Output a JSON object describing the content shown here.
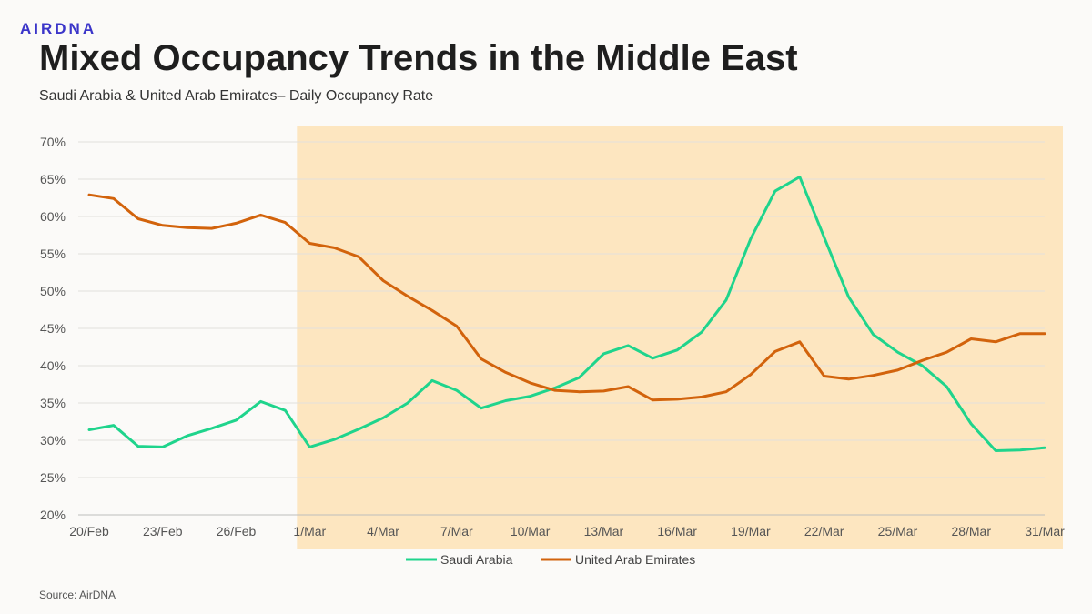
{
  "brand": {
    "logo_text": "AIRDNA",
    "accent": "#3b35c9"
  },
  "header": {
    "title": "Mixed Occupancy Trends in the Middle East",
    "subtitle": "Saudi Arabia & United Arab Emirates– Daily Occupancy Rate"
  },
  "footer": {
    "source": "Source: AirDNA"
  },
  "chart_data": {
    "type": "line",
    "x": [
      "20/Feb",
      "21/Feb",
      "22/Feb",
      "23/Feb",
      "24/Feb",
      "25/Feb",
      "26/Feb",
      "27/Feb",
      "28/Feb",
      "1/Mar",
      "2/Mar",
      "3/Mar",
      "4/Mar",
      "5/Mar",
      "6/Mar",
      "7/Mar",
      "8/Mar",
      "9/Mar",
      "10/Mar",
      "11/Mar",
      "12/Mar",
      "13/Mar",
      "14/Mar",
      "15/Mar",
      "16/Mar",
      "17/Mar",
      "18/Mar",
      "19/Mar",
      "20/Mar",
      "21/Mar",
      "22/Mar",
      "23/Mar",
      "24/Mar",
      "25/Mar",
      "26/Mar",
      "27/Mar",
      "28/Mar",
      "29/Mar",
      "30/Mar",
      "31/Mar"
    ],
    "x_tick_labels": [
      "20/Feb",
      "23/Feb",
      "26/Feb",
      "1/Mar",
      "4/Mar",
      "7/Mar",
      "10/Mar",
      "13/Mar",
      "16/Mar",
      "19/Mar",
      "22/Mar",
      "25/Mar",
      "28/Mar",
      "31/Mar"
    ],
    "series": [
      {
        "name": "Saudi Arabia",
        "color": "#1fd48c",
        "values": [
          31.4,
          32.0,
          29.2,
          29.1,
          30.6,
          31.6,
          32.7,
          35.2,
          34.0,
          29.1,
          30.1,
          31.5,
          33.0,
          35.0,
          38.0,
          36.7,
          34.3,
          35.3,
          35.9,
          37.0,
          38.4,
          41.6,
          42.7,
          41.0,
          42.1,
          44.5,
          48.8,
          57.0,
          63.4,
          65.3,
          57.2,
          49.2,
          44.2,
          41.8,
          40.0,
          37.2,
          32.2,
          28.6,
          28.7,
          29.0
        ]
      },
      {
        "name": "United Arab Emirates",
        "color": "#d2630c",
        "values": [
          62.9,
          62.4,
          59.7,
          58.8,
          58.5,
          58.4,
          59.1,
          60.2,
          59.2,
          56.4,
          55.8,
          54.6,
          51.4,
          49.3,
          47.4,
          45.3,
          40.9,
          39.1,
          37.7,
          36.7,
          36.5,
          36.6,
          37.2,
          35.4,
          35.5,
          35.8,
          36.5,
          38.8,
          41.9,
          43.2,
          38.6,
          38.2,
          38.7,
          39.4,
          40.7,
          41.8,
          43.6,
          43.2,
          44.3,
          44.3
        ]
      }
    ],
    "ylim": [
      20,
      70
    ],
    "y_ticks": [
      "20%",
      "25%",
      "30%",
      "35%",
      "40%",
      "45%",
      "50%",
      "55%",
      "60%",
      "65%",
      "70%"
    ],
    "highlight": {
      "from": "1/Mar",
      "to": "31/Mar",
      "color": "#fde6c0"
    },
    "grid": true,
    "legend_position": "bottom-center"
  }
}
